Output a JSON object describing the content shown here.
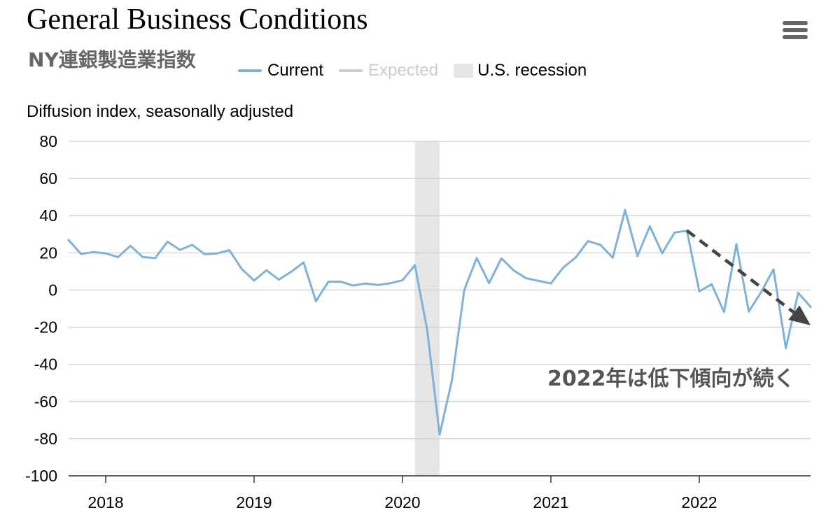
{
  "header": {
    "title": "General Business Conditions",
    "subtitle": "NY連銀製造業指数"
  },
  "menu": {
    "icon": "hamburger-menu-icon"
  },
  "legend": {
    "items": [
      {
        "label": "Current",
        "color": "#7eb2da",
        "kind": "line"
      },
      {
        "label": "Expected",
        "color": "#cccccc",
        "kind": "line"
      },
      {
        "label": "U.S. recession",
        "color": "#e6e6e6",
        "kind": "box"
      }
    ]
  },
  "annotation": {
    "text": "2022年は低下傾向が続く"
  },
  "chart_data": {
    "type": "line",
    "title": "General Business Conditions",
    "ylabel": "Diffusion index, seasonally adjusted",
    "ylim": [
      -100,
      80
    ],
    "yticks": [
      80,
      60,
      40,
      20,
      0,
      -20,
      -40,
      -60,
      -80,
      -100
    ],
    "xlim": [
      "2017-10",
      "2022-10"
    ],
    "xticks": [
      "2018",
      "2019",
      "2020",
      "2021",
      "2022"
    ],
    "grid": true,
    "legend_position": "top",
    "recession": {
      "start": "2020-02",
      "end": "2020-04"
    },
    "trend_arrow": {
      "from": [
        "2021-12",
        32
      ],
      "to": [
        "2022-10",
        -19
      ]
    },
    "series": [
      {
        "name": "Current",
        "color": "#7eb2da",
        "x": [
          "2017-10",
          "2017-11",
          "2017-12",
          "2018-01",
          "2018-02",
          "2018-03",
          "2018-04",
          "2018-05",
          "2018-06",
          "2018-07",
          "2018-08",
          "2018-09",
          "2018-10",
          "2018-11",
          "2018-12",
          "2019-01",
          "2019-02",
          "2019-03",
          "2019-04",
          "2019-05",
          "2019-06",
          "2019-07",
          "2019-08",
          "2019-09",
          "2019-10",
          "2019-11",
          "2019-12",
          "2020-01",
          "2020-02",
          "2020-03",
          "2020-04",
          "2020-05",
          "2020-06",
          "2020-07",
          "2020-08",
          "2020-09",
          "2020-10",
          "2020-11",
          "2020-12",
          "2021-01",
          "2021-02",
          "2021-03",
          "2021-04",
          "2021-05",
          "2021-06",
          "2021-07",
          "2021-08",
          "2021-09",
          "2021-10",
          "2021-11",
          "2021-12",
          "2022-01",
          "2022-02",
          "2022-03",
          "2022-04",
          "2022-05",
          "2022-06",
          "2022-07",
          "2022-08",
          "2022-09",
          "2022-10"
        ],
        "values": [
          26.9,
          19.4,
          20.4,
          19.7,
          17.7,
          23.8,
          17.7,
          17.2,
          26.0,
          21.6,
          24.3,
          19.3,
          19.7,
          21.4,
          11.3,
          5.1,
          10.6,
          5.6,
          9.8,
          14.8,
          -6.0,
          4.4,
          4.5,
          2.4,
          3.5,
          2.7,
          3.6,
          5.3,
          13.3,
          -21.5,
          -77.8,
          -48.5,
          0.1,
          17.2,
          3.7,
          17.0,
          10.5,
          6.3,
          4.9,
          3.5,
          12.1,
          17.4,
          26.3,
          24.3,
          17.4,
          43.0,
          18.3,
          34.3,
          19.8,
          30.9,
          31.9,
          -0.7,
          3.1,
          -11.8,
          24.6,
          -11.6,
          -1.2,
          11.1,
          -31.3,
          -1.5,
          -9.1
        ]
      }
    ]
  }
}
